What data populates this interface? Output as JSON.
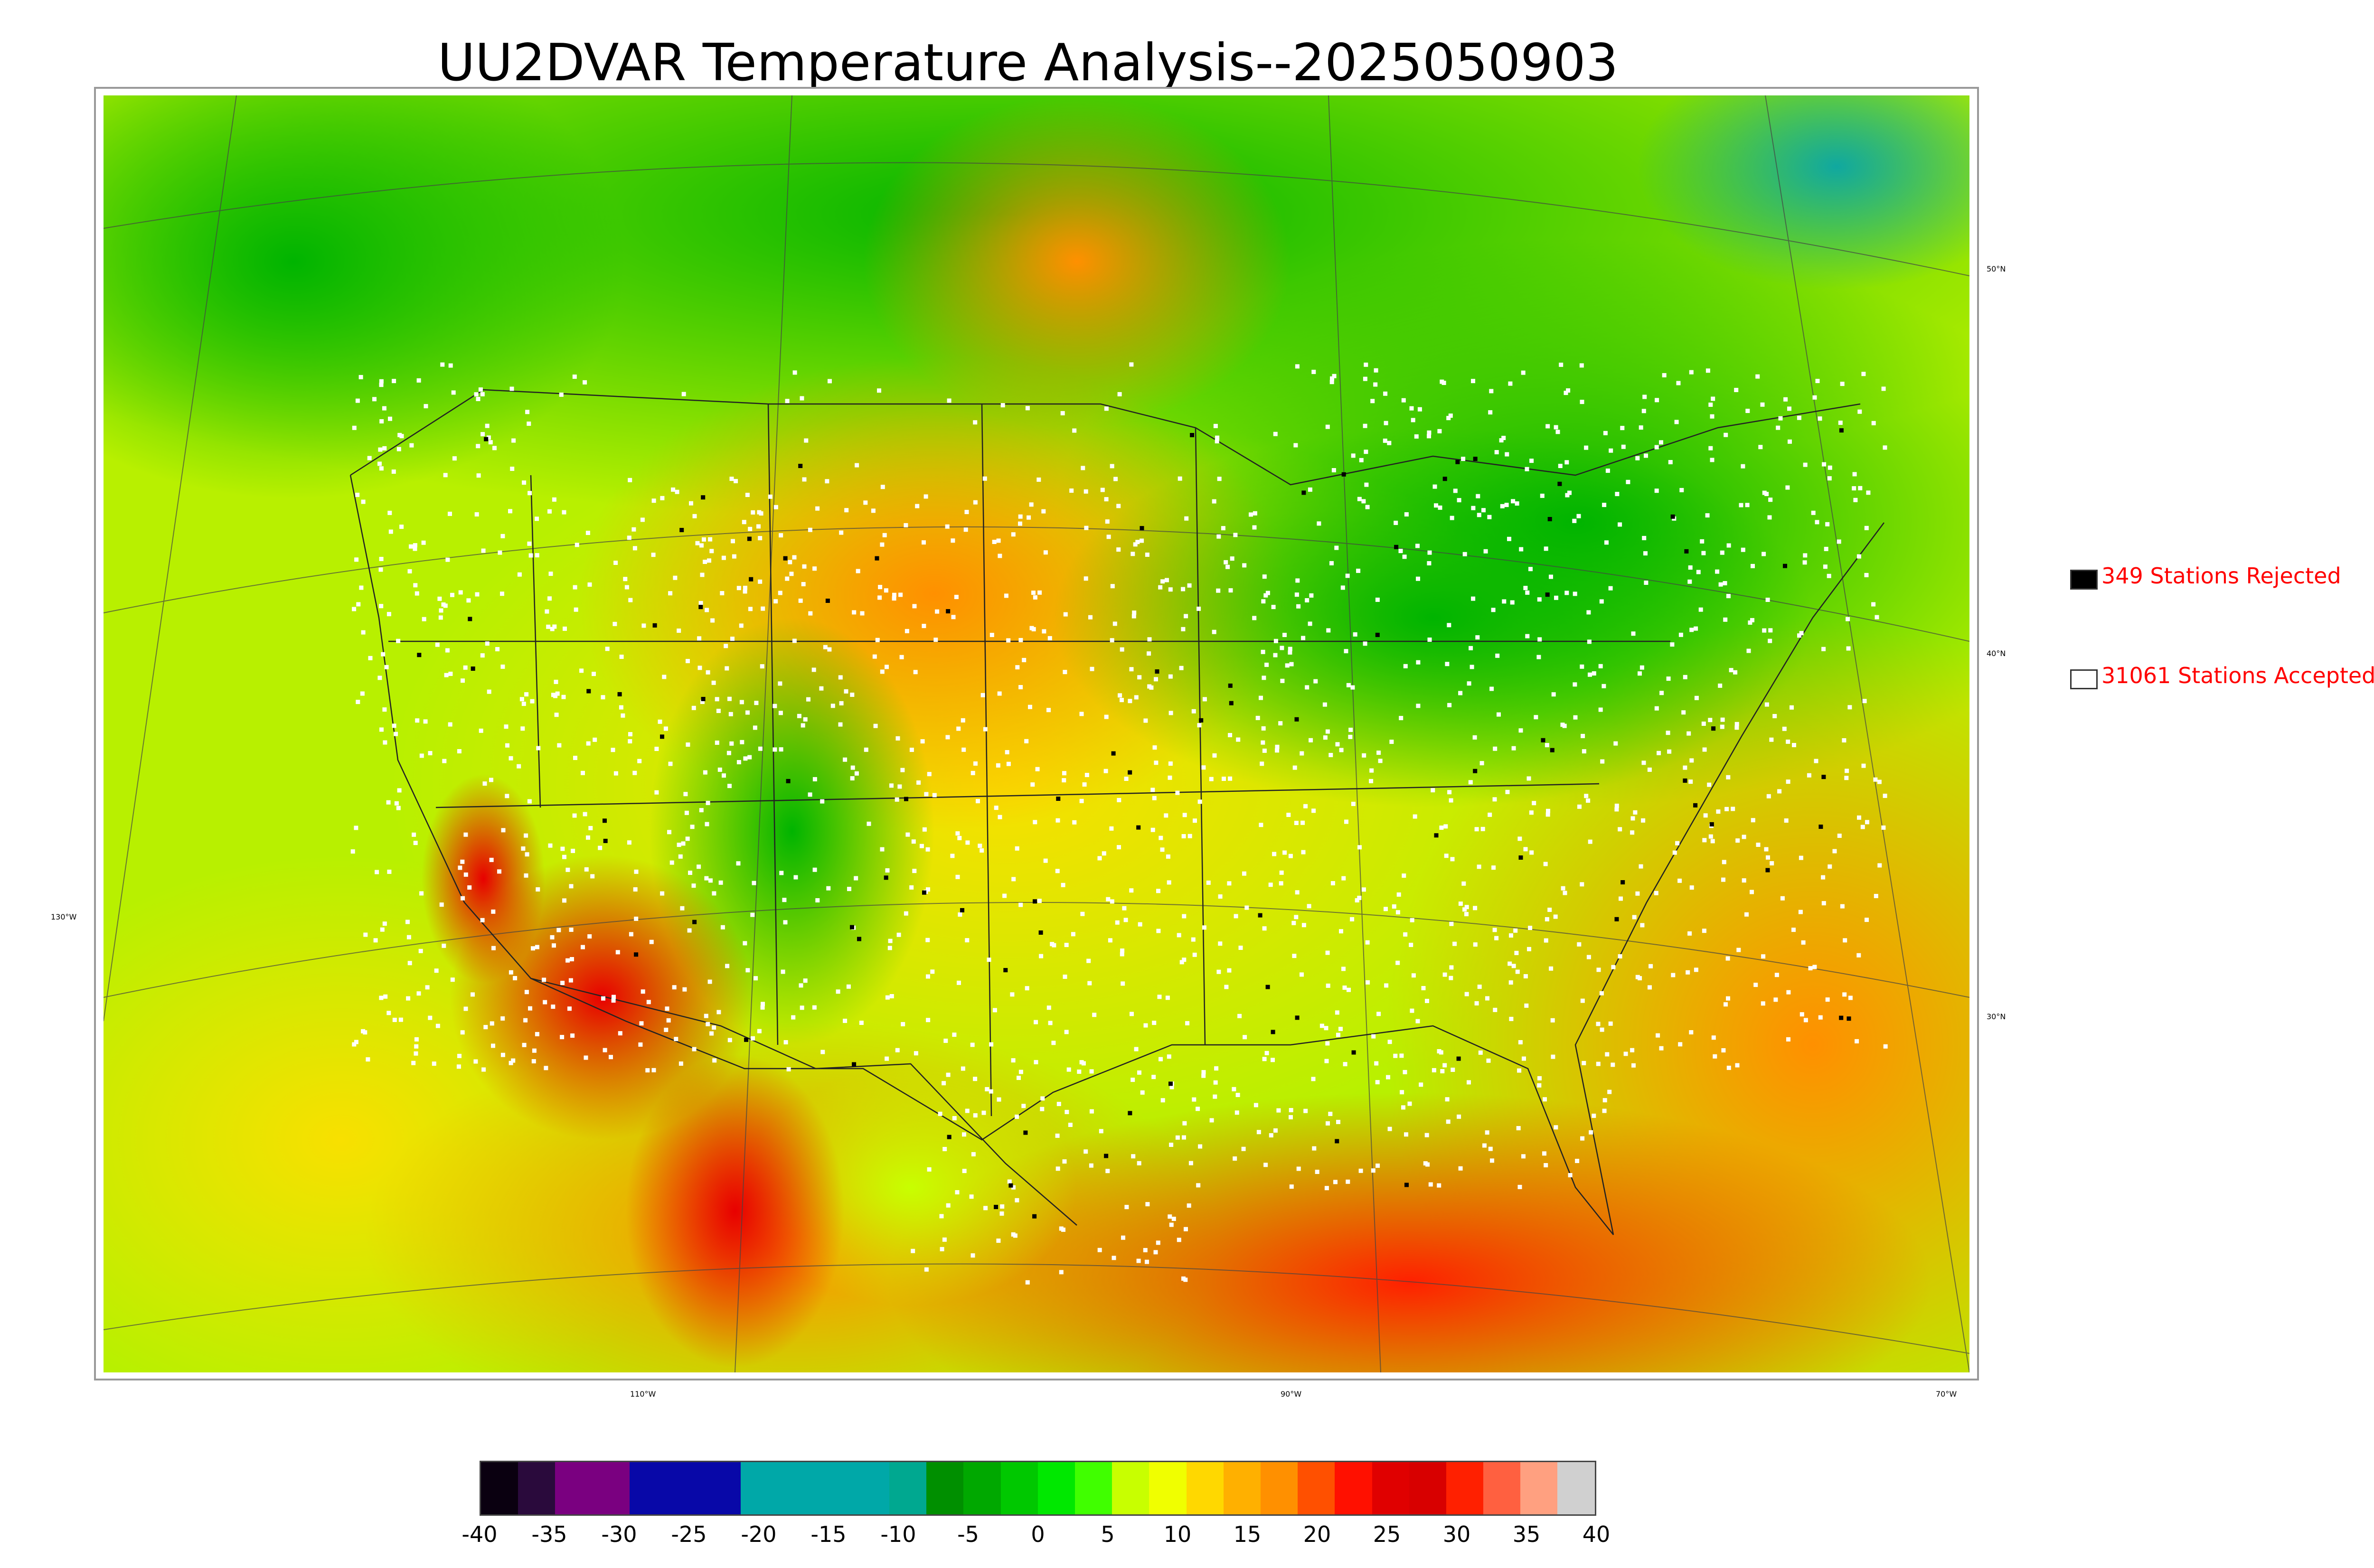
{
  "title": "UU2DVAR Temperature Analysis--2025050903",
  "map": {
    "lat_labels": [
      "50°N",
      "40°N",
      "30°N"
    ],
    "lon_labels": [
      "130°W",
      "110°W",
      "90°W",
      "70°W"
    ]
  },
  "legend": {
    "rejected": {
      "label": "349 Stations Rejected",
      "swatch_color": "#000000"
    },
    "accepted": {
      "label": "31061 Stations Accepted",
      "swatch_color": "#ffffff"
    }
  },
  "colorbar": {
    "tick_labels": [
      "-40",
      "-35",
      "-30",
      "-25",
      "-20",
      "-15",
      "-10",
      "-5",
      "0",
      "5",
      "10",
      "15",
      "20",
      "25",
      "30",
      "35",
      "40"
    ],
    "colors": [
      "#0a0010",
      "#2a0a3c",
      "#7a0080",
      "#7a0080",
      "#0808a8",
      "#0808a8",
      "#0808a8",
      "#00a8a8",
      "#00a8a8",
      "#00a8a8",
      "#00a8a8",
      "#00a890",
      "#008f00",
      "#00a800",
      "#00c800",
      "#00e800",
      "#40ff00",
      "#c8ff00",
      "#f0ff00",
      "#ffd800",
      "#ffb000",
      "#ff9000",
      "#ff5000",
      "#ff1000",
      "#e00000",
      "#d80000",
      "#ff2000",
      "#ff6040",
      "#ffa080",
      "#d0d0d0"
    ]
  }
}
